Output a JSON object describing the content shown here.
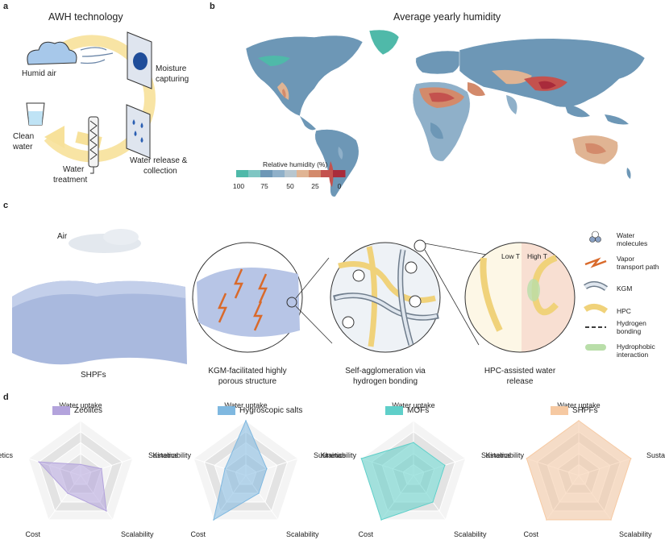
{
  "panel_a": {
    "label": "a",
    "title": "AWH technology",
    "humid_air": "Humid air",
    "moisture_capturing_1": "Moisture",
    "moisture_capturing_2": "capturing",
    "water_release_1": "Water release &",
    "water_release_2": "collection",
    "water_treatment_1": "Water",
    "water_treatment_2": "treatment",
    "clean_water_1": "Clean",
    "clean_water_2": "water"
  },
  "panel_b": {
    "label": "b",
    "title": "Average yearly humidity",
    "legend_title": "Relative humidity (%)",
    "legend_ticks": [
      "100",
      "75",
      "50",
      "25",
      "0"
    ],
    "legend_colors": [
      "#4fb9a9",
      "#7fc6c3",
      "#6d97b6",
      "#8fb0c9",
      "#b7c6cf",
      "#e0b493",
      "#d38a6b",
      "#c4524e",
      "#a92b3b"
    ]
  },
  "panel_c": {
    "label": "c",
    "air": "Air",
    "shpfs": "SHPFs",
    "kgm_caption_1": "KGM-facilitated highly",
    "kgm_caption_2": "porous structure",
    "self_caption_1": "Self-agglomeration via",
    "self_caption_2": "hydrogen bonding",
    "hpc_caption_1": "HPC-assisted water",
    "hpc_caption_2": "release",
    "low_t": "Low T",
    "high_t": "High T",
    "legend": [
      {
        "label_1": "Water",
        "label_2": "molecules",
        "icon": "water-molecule-icon"
      },
      {
        "label_1": "Vapor",
        "label_2": "transport path",
        "icon": "vapor-path-icon"
      },
      {
        "label_1": "KGM",
        "label_2": "",
        "icon": "kgm-chain-icon"
      },
      {
        "label_1": "HPC",
        "label_2": "",
        "icon": "hpc-chain-icon"
      },
      {
        "label_1": "Hydrogen",
        "label_2": "bonding",
        "icon": "hydrogen-bond-icon"
      },
      {
        "label_1": "Hydrophobic",
        "label_2": "interaction",
        "icon": "hydrophobic-icon"
      }
    ]
  },
  "panel_d": {
    "label": "d"
  },
  "chart_data": [
    {
      "type": "radar",
      "title": "Zeolites",
      "color": "#b3a3dc",
      "axes": [
        "Water uptake",
        "Sustainability",
        "Scalability",
        "Cost",
        "Kinetics"
      ],
      "levels": 5,
      "values": [
        1,
        2,
        4,
        2,
        4
      ]
    },
    {
      "type": "radar",
      "title": "Hygroscopic salts",
      "color": "#7fb8e0",
      "axes": [
        "Water uptake",
        "Sustainability",
        "Scalability",
        "Cost",
        "Kinetics"
      ],
      "levels": 5,
      "values": [
        5,
        2,
        2,
        5,
        2
      ]
    },
    {
      "type": "radar",
      "title": "MOFs",
      "color": "#5fcfc9",
      "axes": [
        "Water uptake",
        "Sustainability",
        "Scalability",
        "Cost",
        "Kinetics"
      ],
      "levels": 5,
      "values": [
        3,
        3,
        3,
        5,
        5
      ]
    },
    {
      "type": "radar",
      "title": "SHPFs",
      "color": "#f6c9a2",
      "axes": [
        "Water uptake",
        "Sustainability",
        "Scalability",
        "Cost",
        "Kinetics"
      ],
      "levels": 5,
      "values": [
        5,
        5,
        5,
        5,
        5
      ]
    }
  ]
}
